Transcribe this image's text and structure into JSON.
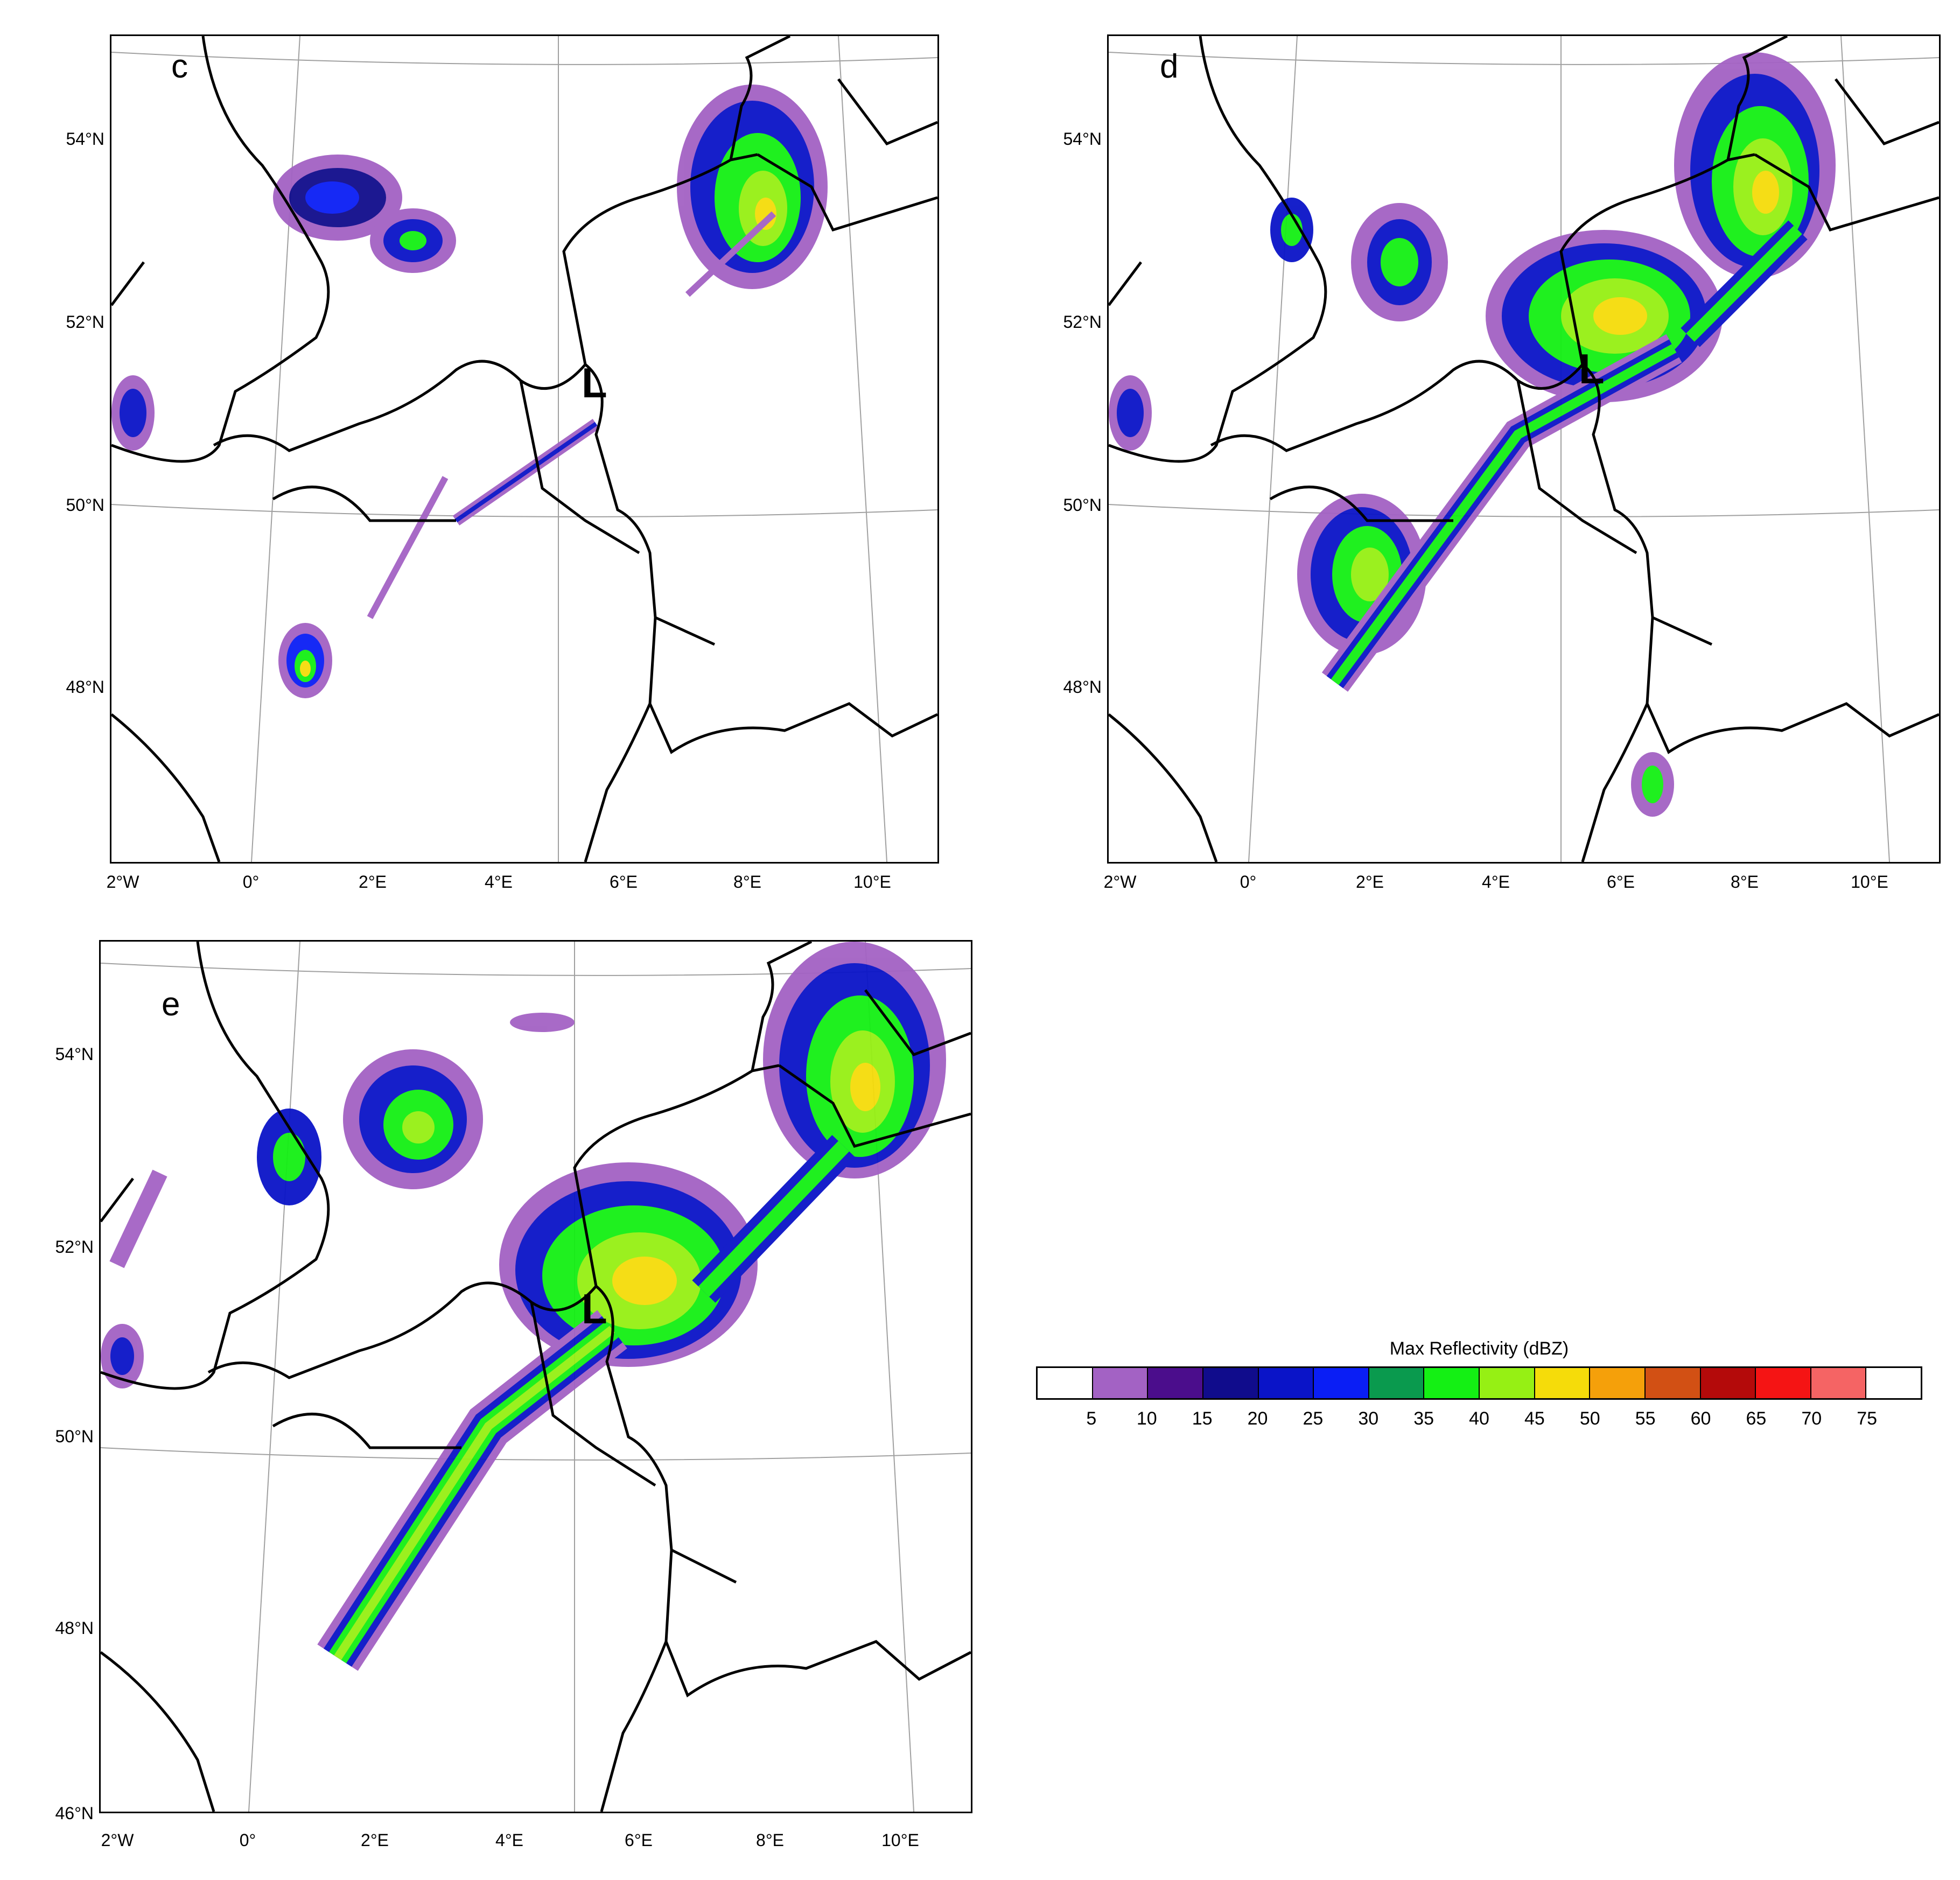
{
  "panels": [
    {
      "id": "c",
      "letter": "c",
      "low_marker": "L",
      "lat_labels": [
        "54°N",
        "52°N",
        "50°N",
        "48°N"
      ],
      "lon_labels": [
        "2°W",
        "0°",
        "2°E",
        "4°E",
        "6°E",
        "8°E",
        "10°E"
      ]
    },
    {
      "id": "d",
      "letter": "d",
      "low_marker": "L",
      "lat_labels": [
        "54°N",
        "52°N",
        "50°N",
        "48°N"
      ],
      "lon_labels": [
        "2°W",
        "0°",
        "2°E",
        "4°E",
        "6°E",
        "8°E",
        "10°E"
      ]
    },
    {
      "id": "e",
      "letter": "e",
      "low_marker": "L",
      "lat_labels": [
        "54°N",
        "52°N",
        "50°N",
        "48°N",
        "46°N"
      ],
      "lon_labels": [
        "2°W",
        "0°",
        "2°E",
        "4°E",
        "6°E",
        "8°E",
        "10°E"
      ]
    }
  ],
  "legend": {
    "title": "Max Reflectivity  (dBZ)",
    "ticks": [
      "5",
      "10",
      "15",
      "20",
      "25",
      "30",
      "35",
      "40",
      "45",
      "50",
      "55",
      "60",
      "65",
      "70",
      "75"
    ],
    "colors": [
      "#ffffff",
      "#a362c4",
      "#4b0d8c",
      "#100c8c",
      "#0a14c8",
      "#0a1ef5",
      "#0a9a4e",
      "#14f014",
      "#96f014",
      "#f5dc0a",
      "#f5a00a",
      "#d25014",
      "#b40a0a",
      "#f51414",
      "#f56464",
      "#ffffff"
    ]
  },
  "palette": {
    "coast": "#000000",
    "grid": "#a0a0a0"
  }
}
